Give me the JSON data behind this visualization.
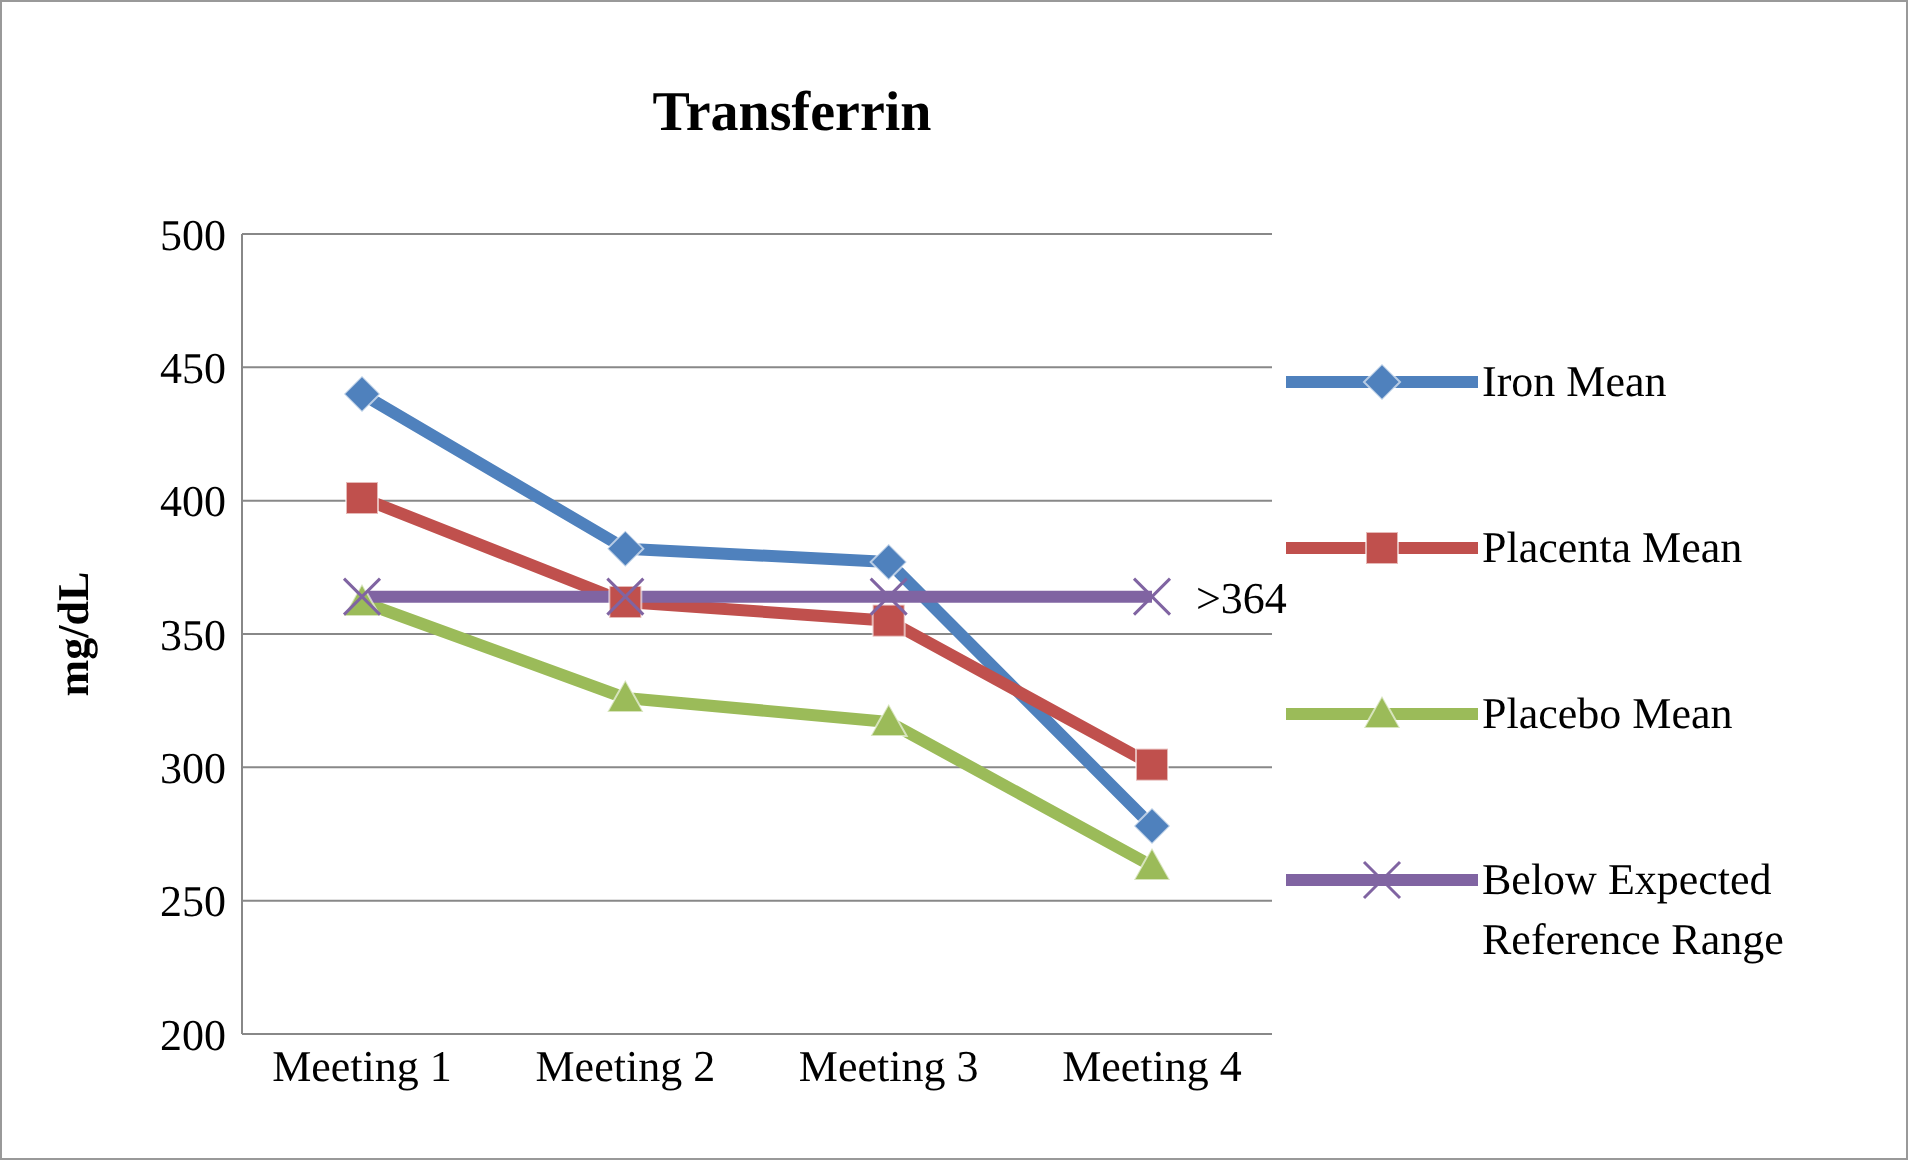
{
  "chart_data": {
    "type": "line",
    "title": "Transferrin",
    "ylabel": "mg/dL",
    "categories": [
      "Meeting 1",
      "Meeting 2",
      "Meeting 3",
      "Meeting 4"
    ],
    "series": [
      {
        "name": "Iron Mean",
        "color": "#4f81bd",
        "marker": "diamond",
        "values": [
          440,
          382,
          377,
          278
        ]
      },
      {
        "name": "Placenta Mean",
        "color": "#c0504d",
        "marker": "square",
        "values": [
          401,
          362,
          355,
          301
        ]
      },
      {
        "name": "Placebo Mean",
        "color": "#9bbb59",
        "marker": "triangle",
        "values": [
          362,
          326,
          317,
          263
        ]
      },
      {
        "name": "Below Expected Reference Range",
        "color": "#8064a2",
        "marker": "cross",
        "values": [
          364,
          364,
          364,
          364
        ],
        "value_labels": [
          null,
          null,
          null,
          ">364"
        ]
      }
    ],
    "ylim": [
      200,
      500
    ],
    "yticks": [
      200,
      250,
      300,
      350,
      400,
      450,
      500
    ],
    "grid": "y",
    "legend": "right"
  }
}
